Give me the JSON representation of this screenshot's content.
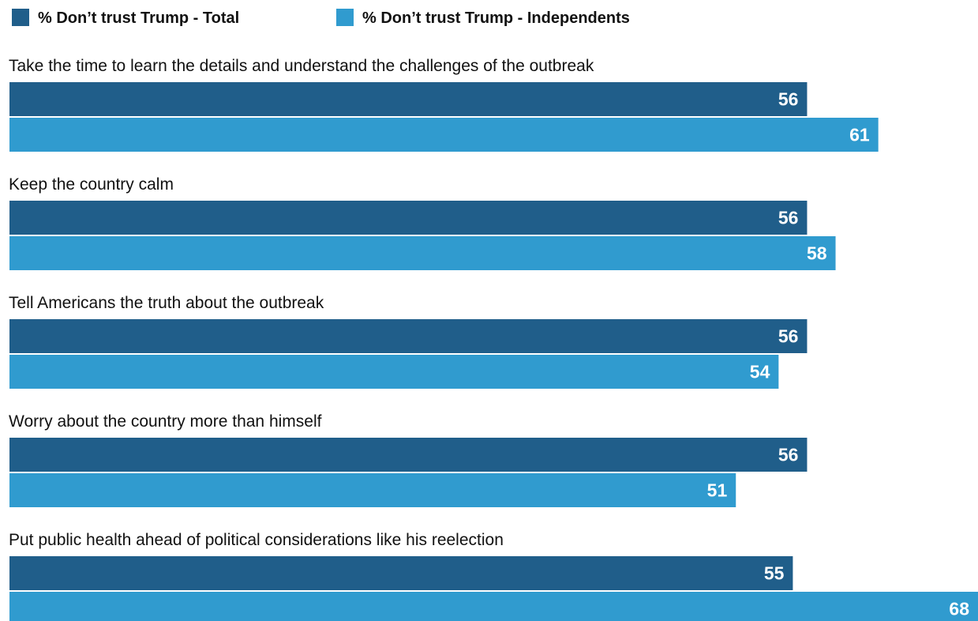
{
  "chart_data": {
    "type": "bar",
    "orientation": "horizontal",
    "categories": [
      "Take the time to learn the details and understand the challenges of the outbreak",
      "Keep the country calm",
      "Tell Americans the truth about the outbreak",
      "Worry about the country more than himself",
      "Put public health ahead of political considerations like his reelection"
    ],
    "series": [
      {
        "name": "% Don’t trust Trump - Total",
        "color": "#205e8a",
        "values": [
          56,
          56,
          56,
          56,
          55
        ]
      },
      {
        "name": "% Don’t trust Trump - Independents",
        "color": "#309bcf",
        "values": [
          61,
          58,
          54,
          51,
          68
        ]
      }
    ],
    "xlim": [
      0,
      68
    ],
    "grid": false,
    "legend_position": "top-left"
  }
}
